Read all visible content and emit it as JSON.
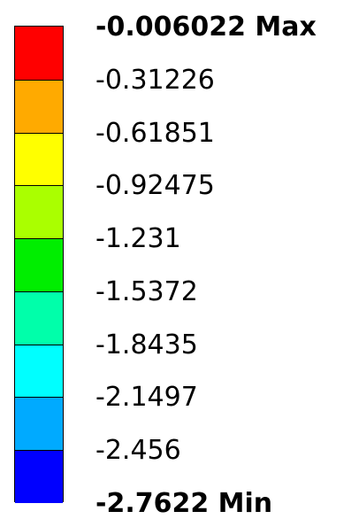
{
  "chart_data": {
    "type": "colorbar",
    "title": "",
    "max_label": "-0.006022 Max",
    "min_label": "-2.7622 Min",
    "tick_labels": [
      "-0.006022 Max",
      "-0.31226",
      "-0.61851",
      "-0.92475",
      "-1.231",
      "-1.5372",
      "-1.8435",
      "-2.1497",
      "-2.456",
      "-2.7622 Min"
    ],
    "tick_values": [
      -0.006022,
      -0.31226,
      -0.61851,
      -0.92475,
      -1.231,
      -1.5372,
      -1.8435,
      -2.1497,
      -2.456,
      -2.7622
    ],
    "bands": [
      {
        "from": -0.006022,
        "to": -0.31226,
        "color": "#ff0000"
      },
      {
        "from": -0.31226,
        "to": -0.61851,
        "color": "#ffaa00"
      },
      {
        "from": -0.61851,
        "to": -0.92475,
        "color": "#ffff00"
      },
      {
        "from": -0.92475,
        "to": -1.231,
        "color": "#aaff00"
      },
      {
        "from": -1.231,
        "to": -1.5372,
        "color": "#00ee00"
      },
      {
        "from": -1.5372,
        "to": -1.8435,
        "color": "#00ffaa"
      },
      {
        "from": -1.8435,
        "to": -2.1497,
        "color": "#00ffff"
      },
      {
        "from": -2.1497,
        "to": -2.456,
        "color": "#00aaff"
      },
      {
        "from": -2.456,
        "to": -2.7622,
        "color": "#0000ff"
      }
    ],
    "range": [
      -2.7622,
      -0.006022
    ],
    "orientation": "vertical"
  }
}
